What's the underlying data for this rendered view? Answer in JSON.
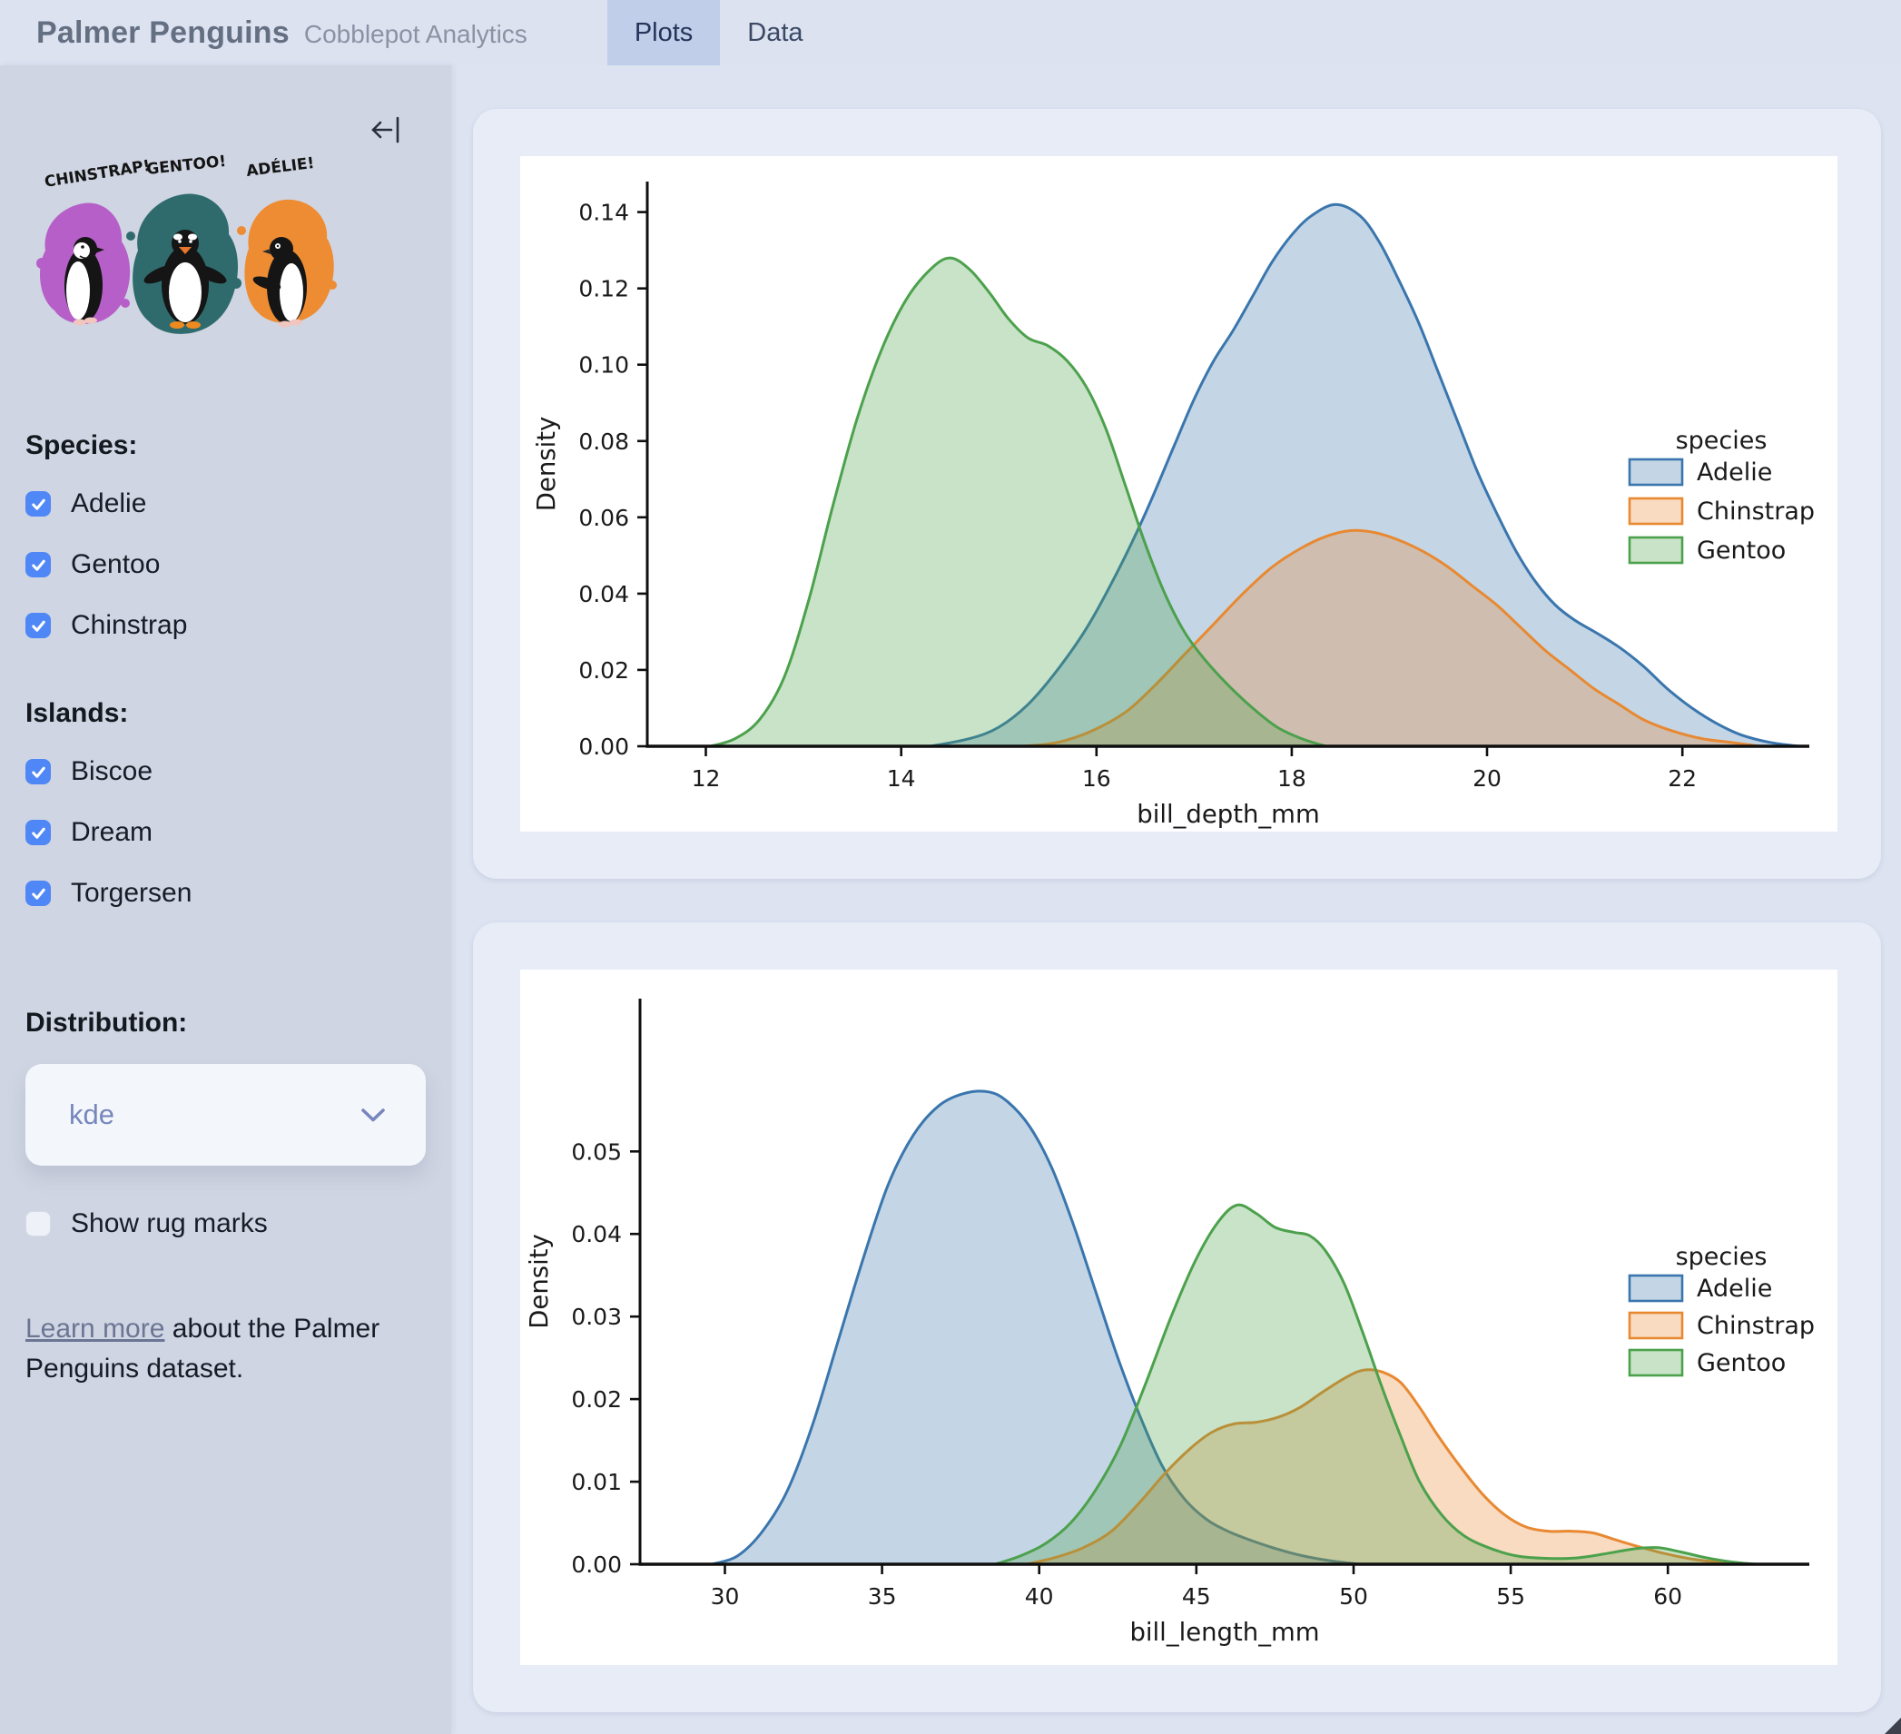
{
  "header": {
    "title": "Palmer Penguins",
    "subtitle": "Cobblepot Analytics",
    "tabs": [
      {
        "label": "Plots",
        "active": true
      },
      {
        "label": "Data",
        "active": false
      }
    ]
  },
  "sidebar": {
    "artwork_labels": [
      "CHINSTRAP!",
      "GENTOO!",
      "ADÉLIE!"
    ],
    "species_label": "Species:",
    "species": [
      {
        "label": "Adelie",
        "checked": true
      },
      {
        "label": "Gentoo",
        "checked": true
      },
      {
        "label": "Chinstrap",
        "checked": true
      }
    ],
    "islands_label": "Islands:",
    "islands": [
      {
        "label": "Biscoe",
        "checked": true
      },
      {
        "label": "Dream",
        "checked": true
      },
      {
        "label": "Torgersen",
        "checked": true
      }
    ],
    "distribution_label": "Distribution:",
    "distribution_value": "kde",
    "rug": {
      "label": "Show rug marks",
      "checked": false
    },
    "learn_more": {
      "link_text": "Learn more",
      "rest": " about the Palmer Penguins dataset."
    }
  },
  "colors": {
    "checkbox_blue": "#4f87f6",
    "adelie": "#3a76ad",
    "chinstrap": "#e88932",
    "gentoo": "#4ca14c",
    "fill_opacity": 0.3,
    "artwork_purple": "#b65fc8",
    "artwork_teal": "#2f6b6d",
    "artwork_orange": "#ee8c33"
  },
  "chart_data": [
    {
      "type": "area",
      "title": "",
      "xlabel": "bill_depth_mm",
      "ylabel": "Density",
      "xlim": [
        11.4,
        23.3
      ],
      "ylim": [
        0,
        0.148
      ],
      "xticks": [
        12,
        14,
        16,
        18,
        20,
        22
      ],
      "yticks": [
        0.0,
        0.02,
        0.04,
        0.06,
        0.08,
        0.1,
        0.12,
        0.14
      ],
      "grid": false,
      "legend_title": "species",
      "legend_position": "center right",
      "series": [
        {
          "name": "Adelie",
          "color": "#3a76ad",
          "points": [
            [
              14.3,
              0
            ],
            [
              14.7,
              0.002
            ],
            [
              15.0,
              0.005
            ],
            [
              15.3,
              0.011
            ],
            [
              15.6,
              0.02
            ],
            [
              15.9,
              0.031
            ],
            [
              16.2,
              0.045
            ],
            [
              16.5,
              0.061
            ],
            [
              16.8,
              0.079
            ],
            [
              17.0,
              0.091
            ],
            [
              17.2,
              0.101
            ],
            [
              17.4,
              0.109
            ],
            [
              17.6,
              0.118
            ],
            [
              17.8,
              0.127
            ],
            [
              18.0,
              0.134
            ],
            [
              18.2,
              0.139
            ],
            [
              18.45,
              0.142
            ],
            [
              18.7,
              0.139
            ],
            [
              18.9,
              0.132
            ],
            [
              19.1,
              0.122
            ],
            [
              19.3,
              0.111
            ],
            [
              19.5,
              0.098
            ],
            [
              19.7,
              0.085
            ],
            [
              19.9,
              0.072
            ],
            [
              20.1,
              0.061
            ],
            [
              20.3,
              0.051
            ],
            [
              20.5,
              0.043
            ],
            [
              20.7,
              0.037
            ],
            [
              20.9,
              0.033
            ],
            [
              21.1,
              0.03
            ],
            [
              21.35,
              0.026
            ],
            [
              21.6,
              0.021
            ],
            [
              21.85,
              0.015
            ],
            [
              22.1,
              0.01
            ],
            [
              22.35,
              0.006
            ],
            [
              22.6,
              0.003
            ],
            [
              22.9,
              0.001
            ],
            [
              23.2,
              0
            ]
          ]
        },
        {
          "name": "Chinstrap",
          "color": "#e88932",
          "points": [
            [
              15.25,
              0
            ],
            [
              15.6,
              0.001
            ],
            [
              15.95,
              0.004
            ],
            [
              16.3,
              0.009
            ],
            [
              16.6,
              0.016
            ],
            [
              16.9,
              0.024
            ],
            [
              17.2,
              0.032
            ],
            [
              17.5,
              0.04
            ],
            [
              17.8,
              0.047
            ],
            [
              18.1,
              0.052
            ],
            [
              18.35,
              0.055
            ],
            [
              18.6,
              0.0565
            ],
            [
              18.85,
              0.056
            ],
            [
              19.1,
              0.054
            ],
            [
              19.35,
              0.051
            ],
            [
              19.6,
              0.047
            ],
            [
              19.85,
              0.042
            ],
            [
              20.1,
              0.037
            ],
            [
              20.35,
              0.031
            ],
            [
              20.6,
              0.025
            ],
            [
              20.85,
              0.02
            ],
            [
              21.1,
              0.015
            ],
            [
              21.35,
              0.011
            ],
            [
              21.6,
              0.007
            ],
            [
              21.9,
              0.004
            ],
            [
              22.2,
              0.002
            ],
            [
              22.5,
              0.001
            ],
            [
              22.8,
              0
            ]
          ]
        },
        {
          "name": "Gentoo",
          "color": "#4ca14c",
          "points": [
            [
              12.05,
              0
            ],
            [
              12.3,
              0.002
            ],
            [
              12.55,
              0.007
            ],
            [
              12.8,
              0.018
            ],
            [
              13.05,
              0.038
            ],
            [
              13.3,
              0.063
            ],
            [
              13.55,
              0.086
            ],
            [
              13.8,
              0.104
            ],
            [
              14.05,
              0.117
            ],
            [
              14.3,
              0.125
            ],
            [
              14.5,
              0.128
            ],
            [
              14.7,
              0.125
            ],
            [
              14.9,
              0.119
            ],
            [
              15.1,
              0.112
            ],
            [
              15.3,
              0.107
            ],
            [
              15.5,
              0.105
            ],
            [
              15.7,
              0.101
            ],
            [
              15.9,
              0.094
            ],
            [
              16.1,
              0.083
            ],
            [
              16.3,
              0.068
            ],
            [
              16.5,
              0.053
            ],
            [
              16.7,
              0.04
            ],
            [
              16.9,
              0.03
            ],
            [
              17.1,
              0.023
            ],
            [
              17.35,
              0.016
            ],
            [
              17.6,
              0.01
            ],
            [
              17.85,
              0.005
            ],
            [
              18.1,
              0.002
            ],
            [
              18.35,
              0
            ]
          ]
        }
      ]
    },
    {
      "type": "area",
      "title": "",
      "xlabel": "bill_length_mm",
      "ylabel": "Density",
      "xlim": [
        27.3,
        64.5
      ],
      "ylim": [
        0,
        0.0685
      ],
      "xticks": [
        30,
        35,
        40,
        45,
        50,
        55,
        60
      ],
      "yticks": [
        0.0,
        0.01,
        0.02,
        0.03,
        0.04,
        0.05
      ],
      "grid": false,
      "legend_title": "species",
      "legend_position": "center right",
      "series": [
        {
          "name": "Adelie",
          "color": "#3a76ad",
          "points": [
            [
              29.6,
              0
            ],
            [
              30.4,
              0.001
            ],
            [
              31.2,
              0.004
            ],
            [
              32.0,
              0.009
            ],
            [
              32.8,
              0.017
            ],
            [
              33.6,
              0.027
            ],
            [
              34.4,
              0.037
            ],
            [
              35.2,
              0.046
            ],
            [
              36.0,
              0.052
            ],
            [
              36.8,
              0.0555
            ],
            [
              37.6,
              0.057
            ],
            [
              38.4,
              0.0572
            ],
            [
              39.0,
              0.056
            ],
            [
              39.7,
              0.053
            ],
            [
              40.4,
              0.048
            ],
            [
              41.1,
              0.041
            ],
            [
              41.8,
              0.033
            ],
            [
              42.5,
              0.025
            ],
            [
              43.2,
              0.018
            ],
            [
              43.9,
              0.012
            ],
            [
              44.6,
              0.008
            ],
            [
              45.3,
              0.0055
            ],
            [
              46.0,
              0.004
            ],
            [
              46.8,
              0.0028
            ],
            [
              47.6,
              0.0018
            ],
            [
              48.4,
              0.001
            ],
            [
              49.3,
              0.0004
            ],
            [
              50.2,
              0
            ]
          ]
        },
        {
          "name": "Chinstrap",
          "color": "#e88932",
          "points": [
            [
              39.6,
              0
            ],
            [
              40.5,
              0.0008
            ],
            [
              41.4,
              0.002
            ],
            [
              42.3,
              0.004
            ],
            [
              43.2,
              0.0075
            ],
            [
              44.0,
              0.011
            ],
            [
              44.8,
              0.014
            ],
            [
              45.5,
              0.016
            ],
            [
              46.2,
              0.017
            ],
            [
              46.9,
              0.0172
            ],
            [
              47.6,
              0.0178
            ],
            [
              48.3,
              0.019
            ],
            [
              49.0,
              0.0208
            ],
            [
              49.7,
              0.0225
            ],
            [
              50.3,
              0.0235
            ],
            [
              50.9,
              0.0233
            ],
            [
              51.5,
              0.022
            ],
            [
              52.1,
              0.019
            ],
            [
              52.7,
              0.0155
            ],
            [
              53.4,
              0.0118
            ],
            [
              54.1,
              0.0085
            ],
            [
              54.8,
              0.006
            ],
            [
              55.5,
              0.0045
            ],
            [
              56.2,
              0.004
            ],
            [
              56.9,
              0.004
            ],
            [
              57.6,
              0.0038
            ],
            [
              58.3,
              0.003
            ],
            [
              59.1,
              0.0021
            ],
            [
              59.9,
              0.0013
            ],
            [
              60.8,
              0.0006
            ],
            [
              61.8,
              0.0002
            ],
            [
              62.6,
              0
            ]
          ]
        },
        {
          "name": "Gentoo",
          "color": "#4ca14c",
          "points": [
            [
              38.6,
              0
            ],
            [
              39.4,
              0.001
            ],
            [
              40.2,
              0.0025
            ],
            [
              41.0,
              0.005
            ],
            [
              41.8,
              0.009
            ],
            [
              42.6,
              0.0145
            ],
            [
              43.4,
              0.022
            ],
            [
              44.2,
              0.03
            ],
            [
              45.0,
              0.037
            ],
            [
              45.7,
              0.0415
            ],
            [
              46.3,
              0.0435
            ],
            [
              46.9,
              0.0425
            ],
            [
              47.5,
              0.0408
            ],
            [
              48.1,
              0.0402
            ],
            [
              48.6,
              0.0398
            ],
            [
              49.1,
              0.038
            ],
            [
              49.7,
              0.034
            ],
            [
              50.3,
              0.028
            ],
            [
              50.9,
              0.0215
            ],
            [
              51.5,
              0.0155
            ],
            [
              52.1,
              0.01
            ],
            [
              52.8,
              0.006
            ],
            [
              53.5,
              0.0035
            ],
            [
              54.3,
              0.002
            ],
            [
              55.2,
              0.001
            ],
            [
              56.2,
              0.0007
            ],
            [
              57.2,
              0.0008
            ],
            [
              58.2,
              0.0014
            ],
            [
              59.0,
              0.0019
            ],
            [
              59.7,
              0.002
            ],
            [
              60.4,
              0.0015
            ],
            [
              61.2,
              0.0008
            ],
            [
              62.0,
              0.0003
            ],
            [
              62.8,
              0
            ]
          ]
        }
      ]
    }
  ]
}
